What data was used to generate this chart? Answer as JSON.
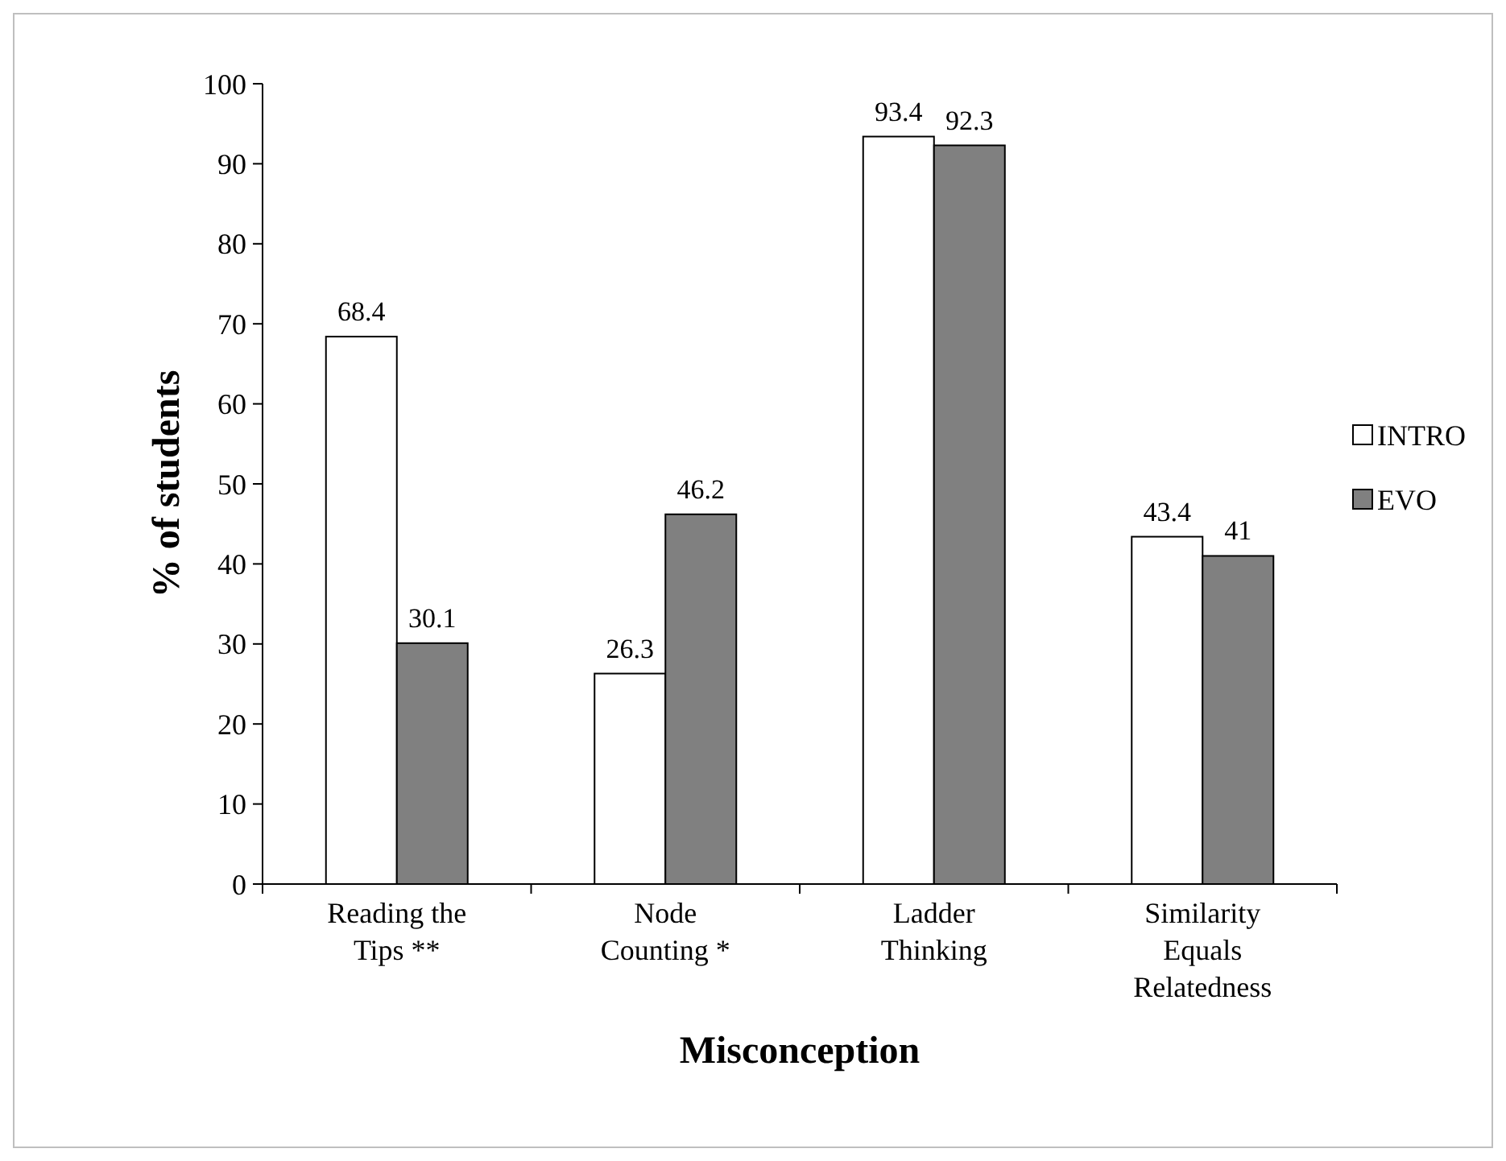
{
  "chart_data": {
    "type": "bar",
    "xlabel": "Misconception",
    "ylabel": "% of students",
    "categories": [
      "Reading the Tips **",
      "Node Counting *",
      "Ladder Thinking",
      "Similarity Equals Relatedness"
    ],
    "series": [
      {
        "name": "INTRO",
        "color": "#ffffff",
        "values": [
          68.4,
          26.3,
          93.4,
          43.4
        ]
      },
      {
        "name": "EVO",
        "color": "#808080",
        "values": [
          30.1,
          46.2,
          92.3,
          41
        ]
      }
    ],
    "ylim": [
      0,
      100
    ],
    "yticks": [
      0,
      10,
      20,
      30,
      40,
      50,
      60,
      70,
      80,
      90,
      100
    ],
    "grid": false,
    "legend": "right",
    "data_labels": true
  }
}
